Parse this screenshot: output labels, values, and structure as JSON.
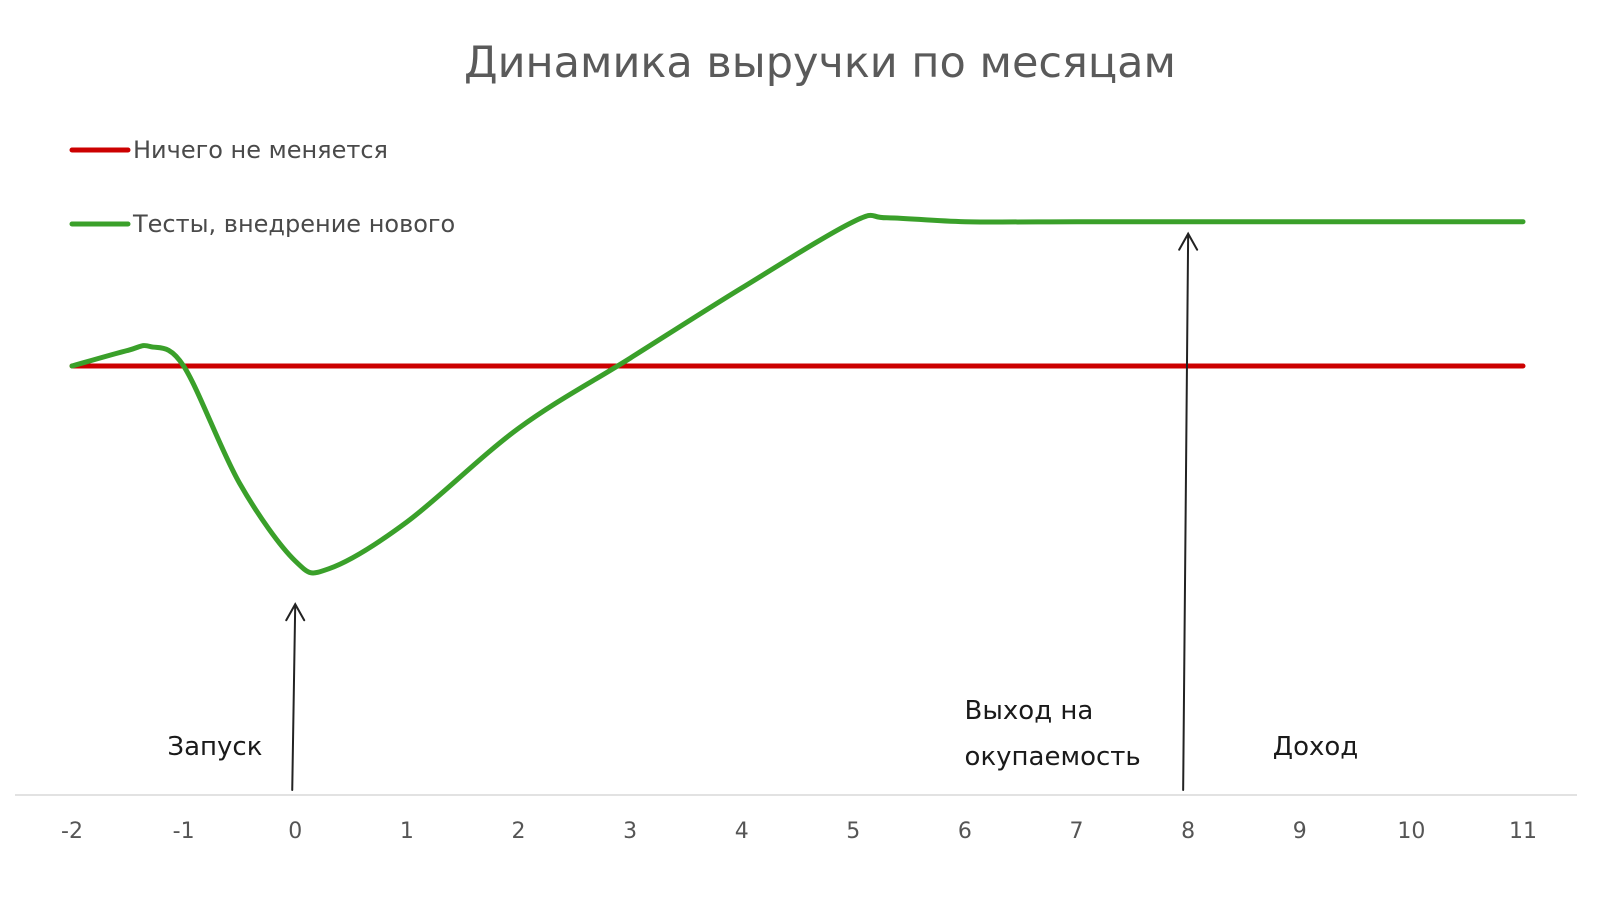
{
  "chart_data": {
    "type": "line",
    "title": "Динамика выручки по месяцам",
    "xlabel": "",
    "ylabel": "",
    "x": [
      -2,
      -1.5,
      -1.3,
      -1,
      -0.5,
      0,
      0.3,
      1,
      2,
      3,
      4,
      5,
      5.3,
      6,
      7,
      8,
      9,
      10,
      11
    ],
    "xticks": [
      "-2",
      "-1",
      "0",
      "1",
      "2",
      "3",
      "4",
      "5",
      "6",
      "7",
      "8",
      "9",
      "10",
      "11"
    ],
    "xlim": [
      -2,
      11
    ],
    "ylim": [
      0,
      100
    ],
    "grid": false,
    "legend_position": "top-left",
    "series": [
      {
        "name": "Ничего не меняется",
        "color": "#cc0000",
        "values": [
          55,
          55,
          55,
          55,
          55,
          55,
          55,
          55,
          55,
          55,
          55,
          55,
          55,
          55,
          55,
          55,
          55,
          55,
          55
        ]
      },
      {
        "name": "Тесты, внедрение нового",
        "color": "#3aa02a",
        "values": [
          55,
          57,
          57.5,
          55,
          40,
          30,
          29,
          35,
          47,
          56,
          65,
          73.5,
          74,
          73.5,
          73.5,
          73.5,
          73.5,
          73.5,
          73.5
        ]
      }
    ],
    "annotations": [
      {
        "lines": [
          "Запуск"
        ],
        "x": -0.5,
        "arrow_x": 0,
        "arrow_to_y": 26
      },
      {
        "lines": [
          "Выход на",
          "окупаемость"
        ],
        "x": 7,
        "arrow_x": 8,
        "arrow_to_y": 73.5
      },
      {
        "lines": [
          "Доход"
        ],
        "x": 9
      }
    ]
  }
}
